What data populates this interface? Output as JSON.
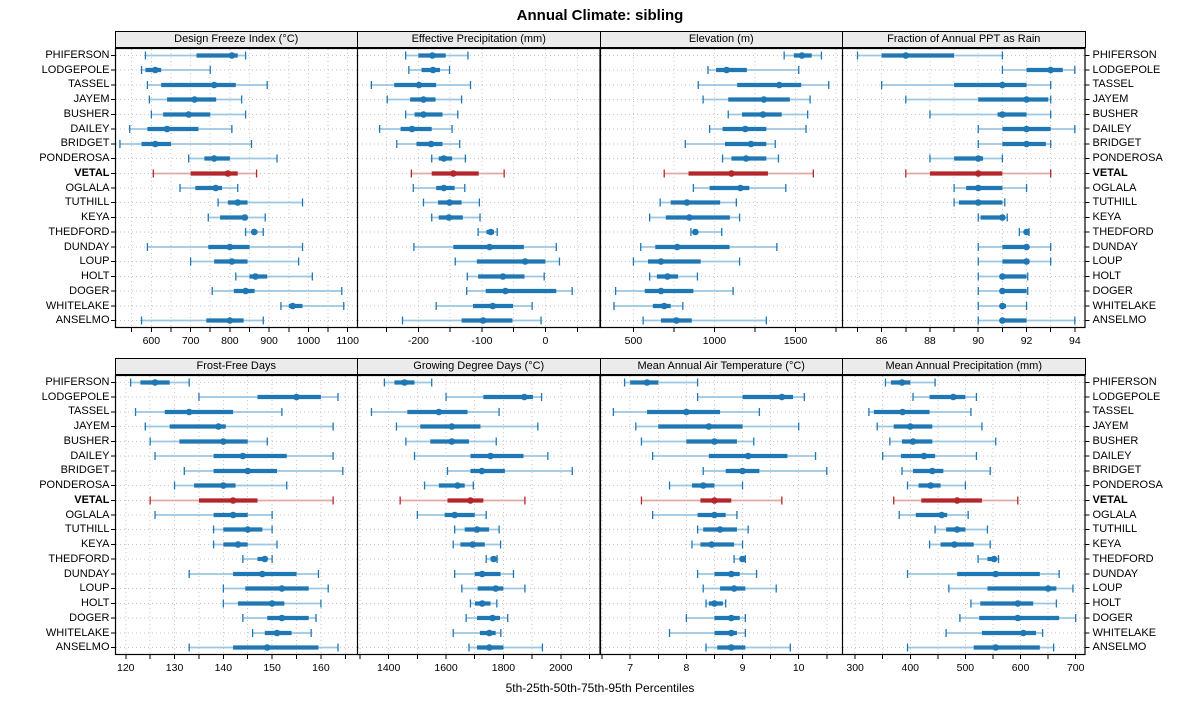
{
  "title": "Annual Climate: sibling",
  "caption": "5th-25th-50th-75th-95th Percentiles",
  "stations": [
    "PHIFERSON",
    "LODGEPOLE",
    "TASSEL",
    "JAYEM",
    "BUSHER",
    "DAILEY",
    "BRIDGET",
    "PONDEROSA",
    "VETAL",
    "OGLALA",
    "TUTHILL",
    "KEYA",
    "THEDFORD",
    "DUNDAY",
    "LOUP",
    "HOLT",
    "DOGER",
    "WHITELAKE",
    "ANSELMO"
  ],
  "highlight_station": "VETAL",
  "percentiles": [
    "5th",
    "25th",
    "50th",
    "75th",
    "95th"
  ],
  "colors": {
    "normal": "#1f77b4",
    "normal_light": "#9dc6e0",
    "highlight": "#b3262a",
    "highlight_light": "#e2a9a6",
    "strip_bg": "#ebebeb",
    "grid": "#c6c6c6",
    "border": "#000000"
  },
  "chart_data": [
    {
      "type": "dotplot-percentile",
      "row": "top",
      "panel": "Design Freeze Index (°C)",
      "xlim": [
        510,
        1125
      ],
      "label_ticks": [
        600,
        700,
        800,
        900,
        1000,
        1100
      ],
      "grid_step": 50,
      "values": [
        [
          585,
          715,
          805,
          820,
          840
        ],
        [
          575,
          585,
          610,
          625,
          750
        ],
        [
          590,
          625,
          760,
          815,
          895
        ],
        [
          595,
          640,
          710,
          765,
          830
        ],
        [
          600,
          630,
          695,
          750,
          840
        ],
        [
          545,
          590,
          640,
          720,
          805
        ],
        [
          520,
          575,
          610,
          650,
          855
        ],
        [
          695,
          735,
          760,
          800,
          920
        ],
        [
          605,
          700,
          795,
          820,
          868
        ],
        [
          673,
          712,
          764,
          780,
          820
        ],
        [
          770,
          795,
          820,
          845,
          985
        ],
        [
          745,
          775,
          838,
          845,
          890
        ],
        [
          840,
          855,
          862,
          870,
          885
        ],
        [
          590,
          745,
          800,
          850,
          985
        ],
        [
          700,
          760,
          805,
          845,
          975
        ],
        [
          815,
          850,
          865,
          895,
          1010
        ],
        [
          755,
          810,
          840,
          863,
          1085
        ],
        [
          930,
          950,
          960,
          985,
          1090
        ],
        [
          575,
          740,
          800,
          835,
          885
        ]
      ]
    },
    {
      "type": "dotplot-percentile",
      "row": "top",
      "panel": "Effective Precipitation (mm)",
      "xlim": [
        -295,
        85
      ],
      "label_ticks": [
        -200,
        -100,
        0
      ],
      "grid_step": 50,
      "values": [
        [
          -220,
          -200,
          -178,
          -157,
          -122
        ],
        [
          -215,
          -195,
          -177,
          -166,
          -151
        ],
        [
          -274,
          -238,
          -199,
          -172,
          -118
        ],
        [
          -249,
          -213,
          -192,
          -173,
          -132
        ],
        [
          -220,
          -206,
          -192,
          -162,
          -138
        ],
        [
          -261,
          -228,
          -210,
          -179,
          -147
        ],
        [
          -234,
          -203,
          -180,
          -162,
          -135
        ],
        [
          -179,
          -168,
          -160,
          -147,
          -126
        ],
        [
          -211,
          -179,
          -145,
          -105,
          -65
        ],
        [
          -208,
          -172,
          -160,
          -143,
          -127
        ],
        [
          -192,
          -169,
          -151,
          -132,
          -104
        ],
        [
          -179,
          -168,
          -152,
          -130,
          -103
        ],
        [
          -106,
          -93,
          -86,
          -81,
          -76
        ],
        [
          -207,
          -145,
          -88,
          -34,
          17
        ],
        [
          -142,
          -108,
          -32,
          0,
          22
        ],
        [
          -123,
          -106,
          -67,
          -33,
          -2
        ],
        [
          -124,
          -94,
          -63,
          17,
          42
        ],
        [
          -172,
          -114,
          -83,
          -51,
          -21
        ],
        [
          -225,
          -132,
          -98,
          -52,
          -7
        ]
      ]
    },
    {
      "type": "dotplot-percentile",
      "row": "top",
      "panel": "Elevation (m)",
      "xlim": [
        300,
        1790
      ],
      "label_ticks": [
        500,
        1000,
        1500
      ],
      "grid_step": 250,
      "values": [
        [
          1430,
          1490,
          1540,
          1600,
          1660
        ],
        [
          960,
          1010,
          1075,
          1200,
          1520
        ],
        [
          900,
          1140,
          1400,
          1535,
          1705
        ],
        [
          930,
          1085,
          1305,
          1465,
          1590
        ],
        [
          1085,
          1170,
          1300,
          1415,
          1575
        ],
        [
          970,
          1050,
          1190,
          1320,
          1565
        ],
        [
          820,
          1065,
          1225,
          1320,
          1375
        ],
        [
          1050,
          1105,
          1195,
          1320,
          1395
        ],
        [
          690,
          840,
          1105,
          1330,
          1610
        ],
        [
          870,
          970,
          1160,
          1215,
          1440
        ],
        [
          665,
          730,
          830,
          1035,
          1135
        ],
        [
          600,
          700,
          845,
          1095,
          1155
        ],
        [
          855,
          870,
          882,
          897,
          1045
        ],
        [
          545,
          635,
          770,
          1093,
          1385
        ],
        [
          500,
          590,
          670,
          915,
          1155
        ],
        [
          600,
          645,
          710,
          775,
          895
        ],
        [
          390,
          570,
          670,
          870,
          1115
        ],
        [
          380,
          620,
          690,
          730,
          805
        ],
        [
          560,
          670,
          765,
          860,
          1320
        ]
      ]
    },
    {
      "type": "dotplot-percentile",
      "row": "top",
      "panel": "Fraction of Annual PPT as Rain",
      "xlim": [
        84.4,
        94.4
      ],
      "label_ticks": [
        86,
        88,
        90,
        92,
        94
      ],
      "grid_step": 1,
      "values": [
        [
          85,
          86,
          87,
          89,
          91
        ],
        [
          91,
          92,
          93,
          93.5,
          94
        ],
        [
          86,
          89,
          91,
          92,
          93
        ],
        [
          87,
          90,
          92,
          92.9,
          93
        ],
        [
          88,
          90.8,
          91,
          92,
          93
        ],
        [
          90,
          91,
          92,
          93,
          94
        ],
        [
          90,
          91,
          92,
          92.8,
          93
        ],
        [
          88,
          89,
          90,
          90.2,
          91
        ],
        [
          87,
          88,
          90,
          91,
          93
        ],
        [
          89,
          89.5,
          90,
          91,
          92
        ],
        [
          89,
          89.2,
          90,
          91,
          91.1
        ],
        [
          90,
          90.1,
          91,
          91.1,
          91.2
        ],
        [
          91.7,
          91.9,
          92,
          92.05,
          92.1
        ],
        [
          90,
          91,
          92,
          92.1,
          93
        ],
        [
          90,
          91,
          92,
          92.05,
          93
        ],
        [
          90,
          90.9,
          91,
          92,
          92.05
        ],
        [
          90,
          90.9,
          91,
          92,
          92.05
        ],
        [
          90,
          90.95,
          91,
          91.15,
          92
        ],
        [
          90,
          90.95,
          91,
          92,
          94
        ]
      ]
    },
    {
      "type": "dotplot-percentile",
      "row": "bottom",
      "panel": "Frost-Free Days",
      "xlim": [
        118,
        167.5
      ],
      "label_ticks": [
        120,
        130,
        140,
        150,
        160
      ],
      "grid_step": 5,
      "values": [
        [
          121,
          123,
          126,
          129,
          133
        ],
        [
          135,
          147,
          155,
          160,
          163.5
        ],
        [
          122,
          128,
          133,
          142,
          152
        ],
        [
          124,
          129,
          139,
          140.5,
          162.5
        ],
        [
          125,
          131,
          140,
          145,
          149
        ],
        [
          126,
          138,
          144,
          153,
          162.5
        ],
        [
          132,
          138,
          145,
          151,
          164.5
        ],
        [
          130,
          134,
          140,
          142.5,
          153
        ],
        [
          125,
          135,
          142,
          147,
          162.5
        ],
        [
          126,
          138,
          142,
          145,
          150
        ],
        [
          138,
          140,
          145,
          148,
          150
        ],
        [
          138,
          140,
          143,
          145,
          151
        ],
        [
          144,
          147,
          148.5,
          149,
          150
        ],
        [
          133,
          142,
          148,
          155,
          159.5
        ],
        [
          140,
          144.5,
          152,
          157.5,
          161.5
        ],
        [
          140,
          143,
          150,
          152.5,
          160
        ],
        [
          144,
          149,
          152,
          157.5,
          159
        ],
        [
          146,
          148.5,
          151,
          154,
          158
        ],
        [
          133,
          142,
          149,
          159.5,
          163.5
        ]
      ]
    },
    {
      "type": "dotplot-percentile",
      "row": "bottom",
      "panel": "Growing Degree Days (°C)",
      "xlim": [
        1293,
        2135
      ],
      "label_ticks": [
        1400,
        1600,
        1800,
        2000
      ],
      "grid_step": 100,
      "values": [
        [
          1385,
          1420,
          1455,
          1490,
          1550
        ],
        [
          1600,
          1730,
          1873,
          1903,
          1933
        ],
        [
          1340,
          1465,
          1575,
          1675,
          1785
        ],
        [
          1427,
          1510,
          1620,
          1720,
          1920
        ],
        [
          1460,
          1545,
          1620,
          1680,
          1775
        ],
        [
          1490,
          1685,
          1755,
          1870,
          1955
        ],
        [
          1605,
          1685,
          1725,
          1805,
          2040
        ],
        [
          1525,
          1575,
          1640,
          1665,
          1695
        ],
        [
          1440,
          1605,
          1685,
          1730,
          1875
        ],
        [
          1500,
          1595,
          1630,
          1700,
          1740
        ],
        [
          1630,
          1665,
          1708,
          1750,
          1785
        ],
        [
          1625,
          1650,
          1693,
          1735,
          1790
        ],
        [
          1740,
          1755,
          1766,
          1772,
          1778
        ],
        [
          1630,
          1700,
          1726,
          1790,
          1835
        ],
        [
          1655,
          1710,
          1773,
          1800,
          1875
        ],
        [
          1685,
          1701,
          1726,
          1755,
          1777
        ],
        [
          1670,
          1708,
          1762,
          1788,
          1815
        ],
        [
          1625,
          1718,
          1751,
          1773,
          1791
        ],
        [
          1680,
          1708,
          1751,
          1800,
          1936
        ]
      ]
    },
    {
      "type": "dotplot-percentile",
      "row": "bottom",
      "panel": "Mean Annual Air Temperature (°C)",
      "xlim": [
        6.48,
        10.78
      ],
      "label_ticks": [
        7,
        8,
        9,
        10
      ],
      "grid_step": 0.5,
      "values": [
        [
          6.9,
          7.0,
          7.3,
          7.5,
          8.2
        ],
        [
          8.2,
          9.0,
          9.7,
          9.9,
          10.1
        ],
        [
          6.7,
          7.3,
          8.0,
          8.6,
          9.3
        ],
        [
          7.1,
          7.5,
          8.4,
          9.0,
          10.0
        ],
        [
          7.2,
          8.0,
          8.5,
          8.9,
          9.2
        ],
        [
          7.4,
          8.4,
          9.1,
          9.8,
          10.3
        ],
        [
          8.3,
          8.7,
          9.0,
          9.3,
          10.5
        ],
        [
          7.7,
          8.1,
          8.3,
          8.5,
          9.0
        ],
        [
          7.2,
          8.25,
          8.5,
          8.8,
          9.7
        ],
        [
          7.4,
          8.2,
          8.5,
          8.7,
          8.9
        ],
        [
          8.2,
          8.3,
          8.6,
          8.9,
          9.1
        ],
        [
          8.1,
          8.25,
          8.45,
          8.85,
          9.0
        ],
        [
          8.85,
          8.95,
          9.0,
          9.02,
          9.05
        ],
        [
          8.2,
          8.5,
          8.8,
          8.95,
          9.25
        ],
        [
          8.3,
          8.6,
          8.85,
          9.05,
          9.6
        ],
        [
          8.35,
          8.4,
          8.5,
          8.65,
          8.7
        ],
        [
          8.0,
          8.5,
          8.8,
          8.95,
          9.05
        ],
        [
          7.7,
          8.5,
          8.8,
          8.9,
          9.05
        ],
        [
          8.35,
          8.55,
          8.8,
          9.05,
          9.85
        ]
      ]
    },
    {
      "type": "dotplot-percentile",
      "row": "bottom",
      "panel": "Mean Annual Precipitation (mm)",
      "xlim": [
        278,
        716
      ],
      "label_ticks": [
        300,
        400,
        500,
        600,
        700
      ],
      "grid_step": 50,
      "values": [
        [
          355,
          365,
          385,
          400,
          445
        ],
        [
          405,
          435,
          478,
          500,
          520
        ],
        [
          325,
          334,
          386,
          435,
          510
        ],
        [
          340,
          370,
          400,
          440,
          530
        ],
        [
          363,
          385,
          405,
          440,
          555
        ],
        [
          350,
          383,
          425,
          445,
          520
        ],
        [
          385,
          405,
          440,
          460,
          545
        ],
        [
          395,
          415,
          437,
          455,
          500
        ],
        [
          370,
          420,
          485,
          530,
          595
        ],
        [
          380,
          410,
          457,
          467,
          505
        ],
        [
          445,
          465,
          485,
          500,
          540
        ],
        [
          435,
          455,
          480,
          515,
          545
        ],
        [
          523,
          540,
          552,
          556,
          560
        ],
        [
          395,
          485,
          555,
          635,
          670
        ],
        [
          470,
          540,
          650,
          665,
          695
        ],
        [
          510,
          527,
          595,
          623,
          665
        ],
        [
          490,
          525,
          595,
          670,
          700
        ],
        [
          465,
          530,
          605,
          628,
          640
        ],
        [
          395,
          515,
          555,
          635,
          660
        ]
      ]
    }
  ]
}
